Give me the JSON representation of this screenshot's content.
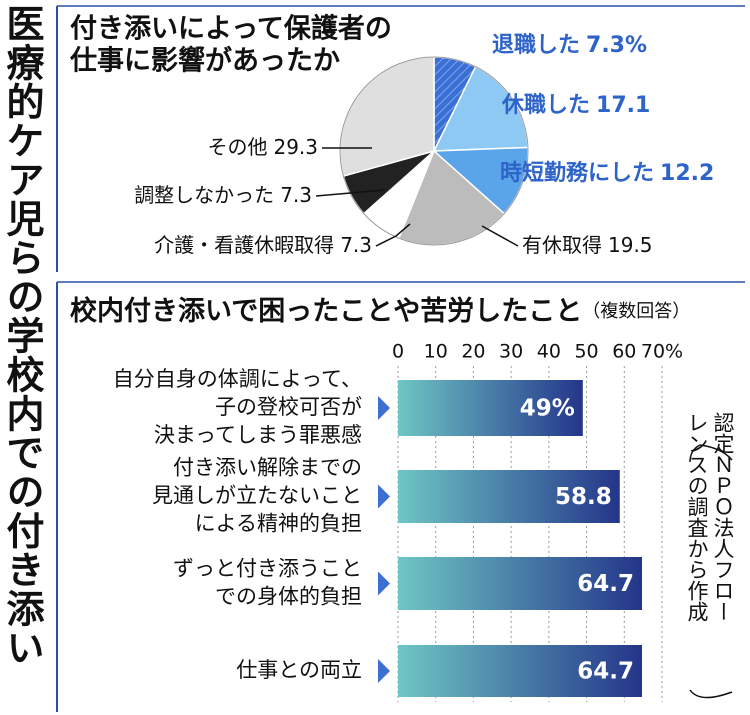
{
  "title": "医療的ケア児らの学校内での付き添い",
  "source": [
    "認定ＮＰＯ法人フロー",
    "レンスの調査から作成"
  ],
  "chart_data": [
    {
      "type": "pie",
      "title": [
        "付き添いによって保護者の",
        "仕事に影響があったか"
      ],
      "categories": [
        "退職した",
        "休職した",
        "時短勤務にした",
        "有休取得",
        "介護・看護休暇取得",
        "調整しなかった",
        "その他"
      ],
      "values": [
        7.3,
        17.1,
        12.2,
        19.5,
        7.3,
        7.3,
        29.3
      ],
      "value_labels": [
        "7.3%",
        "17.1",
        "12.2",
        "19.5",
        "7.3",
        "7.3",
        "29.3"
      ],
      "colors": [
        "#3a6fd6",
        "#8ec9f3",
        "#5aa4ea",
        "#bcbcbc",
        "#ffffff",
        "#222222",
        "#dfdfdf"
      ]
    },
    {
      "type": "hbar",
      "title": "校内付き添いで困ったことや苦労したこと",
      "subtitle": "（複数回答）",
      "categories": [
        [
          "自分自身の体調によって、",
          "子の登校可否が",
          "決まってしまう罪悪感"
        ],
        [
          "付き添い解除までの",
          "見通しが立たないこと",
          "による精神的負担"
        ],
        [
          "ずっと付き添うこと",
          "での身体的負担"
        ],
        [
          "仕事との両立"
        ]
      ],
      "values": [
        49,
        58.8,
        64.7,
        64.7
      ],
      "value_labels": [
        "49%",
        "58.8",
        "64.7",
        "64.7"
      ],
      "xlim": [
        0,
        70
      ],
      "xticks": [
        0,
        10,
        20,
        30,
        40,
        50,
        60,
        {
          "value": 70,
          "label": "70%"
        }
      ],
      "grid": true,
      "color_gradient": [
        "#6ec6c4",
        "#24358a"
      ]
    }
  ]
}
